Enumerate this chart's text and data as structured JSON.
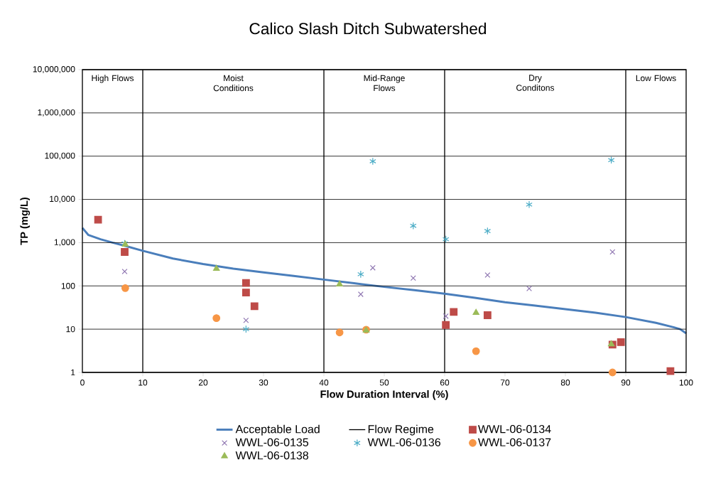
{
  "chart_data": {
    "type": "scatter",
    "title": "Calico Slash Ditch Subwatershed",
    "xlabel": "Flow Duration Interval (%)",
    "ylabel": "TP (mg/L)",
    "log": "y",
    "grid": "y",
    "legend": "bottom",
    "xlim": [
      0,
      100
    ],
    "xticks": [
      0,
      10,
      20,
      30,
      40,
      50,
      60,
      70,
      80,
      90,
      100
    ],
    "ylim": [
      1,
      10000000
    ],
    "yticks": [
      1,
      10,
      100,
      {
        "value": 1000,
        "label": "1,000"
      },
      {
        "value": 10000,
        "label": "10,000"
      },
      {
        "value": 100000,
        "label": "100,000"
      },
      {
        "value": 1000000,
        "label": "1,000,000"
      },
      {
        "value": 10000000,
        "label": "10,000,000"
      }
    ],
    "annotations": [
      "High Flows",
      "Moist Conditions",
      "Mid-Range Flows",
      "Dry Conditons",
      "Low Flows"
    ],
    "ref_lines": [
      {
        "axis": "x",
        "value": 10,
        "label": "Flow Regime",
        "color": "#000000"
      },
      {
        "axis": "x",
        "value": 40,
        "color": "#000000"
      },
      {
        "axis": "x",
        "value": 60,
        "color": "#000000"
      },
      {
        "axis": "x",
        "value": 90,
        "color": "#000000"
      }
    ],
    "series": [
      {
        "name": "Acceptable Load",
        "type": "line",
        "color": "#4a7ebb",
        "marker": "none",
        "x": [
          0,
          1,
          3,
          5,
          7,
          10,
          15,
          20,
          25,
          30,
          35,
          40,
          45,
          50,
          55,
          60,
          65,
          70,
          75,
          80,
          85,
          90,
          95,
          98,
          99,
          100
        ],
        "values": [
          2200,
          1500,
          1200,
          1000,
          850,
          650,
          430,
          320,
          250,
          205,
          170,
          140,
          115,
          95,
          80,
          66,
          53,
          42,
          35,
          29,
          24,
          19,
          14,
          11,
          10,
          8
        ]
      },
      {
        "name": "WWL-06-0134",
        "color": "#be4b48",
        "marker": "square",
        "x": [
          2.6,
          7.0,
          27.1,
          27.1,
          28.5,
          60.2,
          61.5,
          67.1,
          87.8,
          89.2,
          97.4
        ],
        "values": [
          3400,
          610,
          117,
          70,
          34,
          12.5,
          25,
          21,
          4.4,
          5,
          1.07
        ]
      },
      {
        "name": "WWL-06-0135",
        "color": "#8d74b0",
        "marker": "cross",
        "x": [
          7.0,
          27.1,
          46.1,
          48.1,
          54.8,
          60.2,
          67.1,
          74.0,
          87.8
        ],
        "values": [
          215,
          16,
          64,
          262,
          152,
          20,
          178,
          87,
          610
        ]
      },
      {
        "name": "WWL-06-0136",
        "color": "#4bacc6",
        "x": [
          7.0,
          27.1,
          46.1,
          48.1,
          54.8,
          60.2,
          67.1,
          74.0,
          87.6
        ],
        "values": [
          960,
          10,
          186,
          76000,
          2450,
          1200,
          1860,
          7600,
          81000
        ]
      },
      {
        "name": "WWL-06-0137",
        "color": "#f79646",
        "marker": "circle",
        "x": [
          7.1,
          22.2,
          42.6,
          47.0,
          65.2,
          87.8
        ],
        "values": [
          89,
          18,
          8.4,
          9.7,
          3.1,
          1.0
        ]
      },
      {
        "name": "WWL-06-0138",
        "color": "#9bbb59",
        "marker": "triangle",
        "x": [
          7.1,
          22.2,
          42.6,
          47.0,
          65.2,
          87.6
        ],
        "values": [
          905,
          250,
          109,
          9.3,
          24,
          4.5
        ]
      }
    ]
  }
}
